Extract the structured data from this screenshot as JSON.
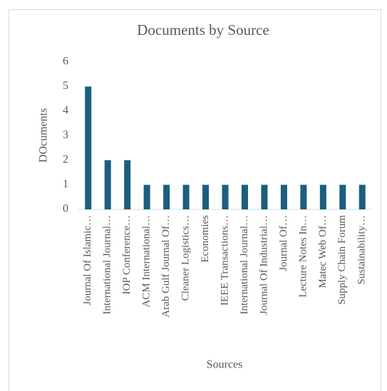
{
  "chart_data": {
    "type": "bar",
    "title": "Documents by Source",
    "x_label": "Sources",
    "y_label": "DOcuments",
    "categories": [
      "Journal Of Islamic…",
      "International Journal…",
      "IOP Conference…",
      "ACM International…",
      "Arab Gulf Journal Of…",
      "Cleaner Logistics…",
      "Economies",
      "IEEE Transactions…",
      "International Journal…",
      "Journal Of Industrial…",
      "Journal Of…",
      "Lecture Notes In…",
      "Matec Web Of…",
      "Supply Chain Forum",
      "Sustainability…"
    ],
    "values": [
      5,
      2,
      2,
      1,
      1,
      1,
      1,
      1,
      1,
      1,
      1,
      1,
      1,
      1,
      1
    ],
    "color": "#1b5e7d",
    "ylim": [
      0,
      6
    ],
    "yticks": [
      0,
      1,
      2,
      3,
      4,
      5,
      6
    ],
    "grid": false
  }
}
